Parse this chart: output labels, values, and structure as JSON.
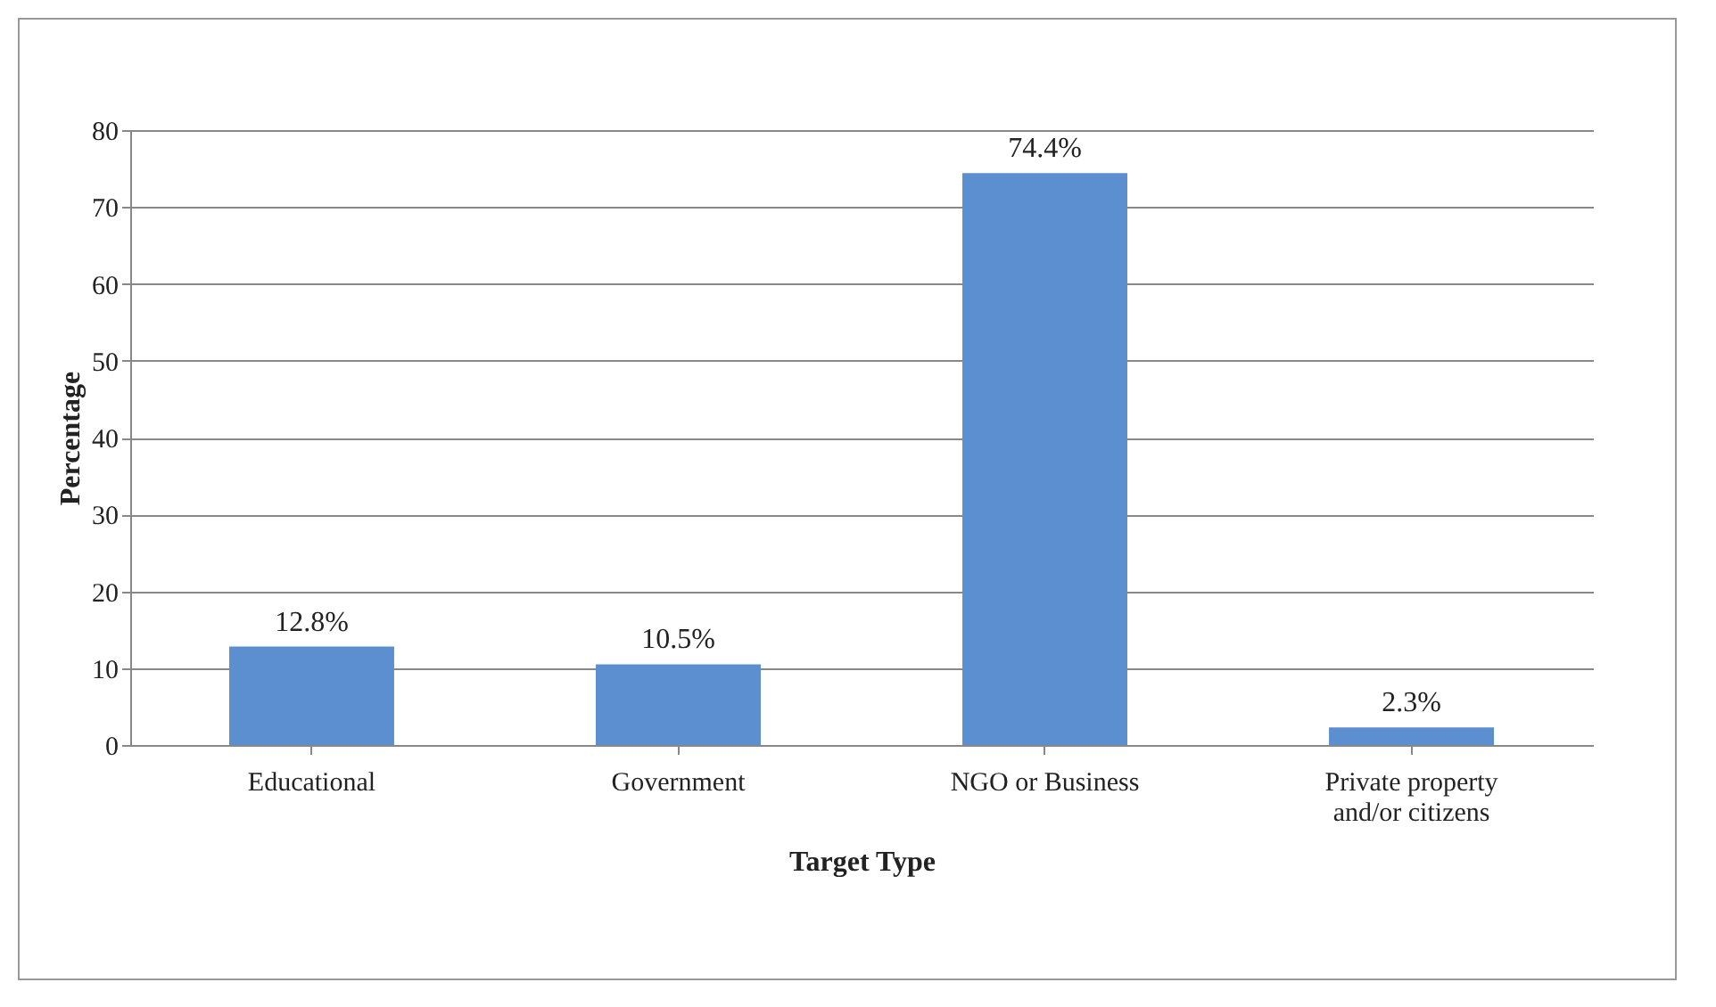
{
  "chart_data": {
    "type": "bar",
    "xlabel": "Target Type",
    "ylabel": "Percentage",
    "categories": [
      "Educational",
      "Government",
      "NGO or Business",
      "Private property and/or citizens"
    ],
    "values": [
      12.8,
      10.5,
      74.4,
      2.3
    ],
    "value_labels": [
      "12.8%",
      "10.5%",
      "74.4%",
      "2.3%"
    ],
    "color": "#5b8fd0",
    "ylim": [
      0,
      80
    ],
    "yticks": [
      0,
      10,
      20,
      30,
      40,
      50,
      60,
      70,
      80
    ],
    "grid": "y"
  }
}
